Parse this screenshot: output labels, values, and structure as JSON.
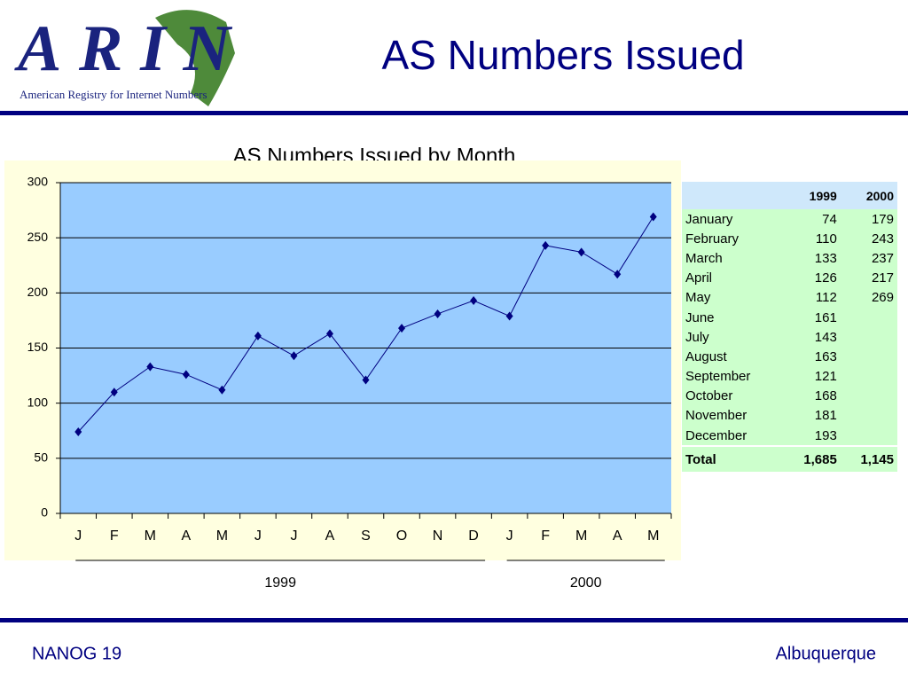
{
  "header": {
    "logo_text": "ARIN",
    "logo_subtitle": "American Registry for Internet Numbers",
    "title": "AS Numbers Issued"
  },
  "chart_data": {
    "type": "line",
    "title": "AS Numbers Issued by Month",
    "categories": [
      "J",
      "F",
      "M",
      "A",
      "M",
      "J",
      "J",
      "A",
      "S",
      "O",
      "N",
      "D",
      "J",
      "F",
      "M",
      "A",
      "M"
    ],
    "values": [
      74,
      110,
      133,
      126,
      112,
      161,
      143,
      163,
      121,
      168,
      181,
      193,
      179,
      243,
      237,
      217,
      269
    ],
    "x_groups": [
      "1999",
      "2000"
    ],
    "color": "#000080",
    "ylim": [
      0,
      300
    ],
    "yticks": [
      0,
      50,
      100,
      150,
      200,
      250,
      300
    ],
    "grid": true
  },
  "table": {
    "columns": [
      "1999",
      "2000"
    ],
    "rows": [
      {
        "label": "January",
        "values": [
          74,
          179
        ]
      },
      {
        "label": "February",
        "values": [
          110,
          243
        ]
      },
      {
        "label": "March",
        "values": [
          133,
          237
        ]
      },
      {
        "label": "April",
        "values": [
          126,
          217
        ]
      },
      {
        "label": "May",
        "values": [
          112,
          269
        ]
      },
      {
        "label": "June",
        "values": [
          161,
          null
        ]
      },
      {
        "label": "July",
        "values": [
          143,
          null
        ]
      },
      {
        "label": "August",
        "values": [
          163,
          null
        ]
      },
      {
        "label": "September",
        "values": [
          121,
          null
        ]
      },
      {
        "label": "October",
        "values": [
          168,
          null
        ]
      },
      {
        "label": "November",
        "values": [
          181,
          null
        ]
      },
      {
        "label": "December",
        "values": [
          193,
          null
        ]
      }
    ],
    "total": {
      "label": "Total",
      "values": [
        "1,685",
        "1,145"
      ]
    }
  },
  "footer": {
    "left": "NANOG 19",
    "right": "Albuquerque"
  }
}
